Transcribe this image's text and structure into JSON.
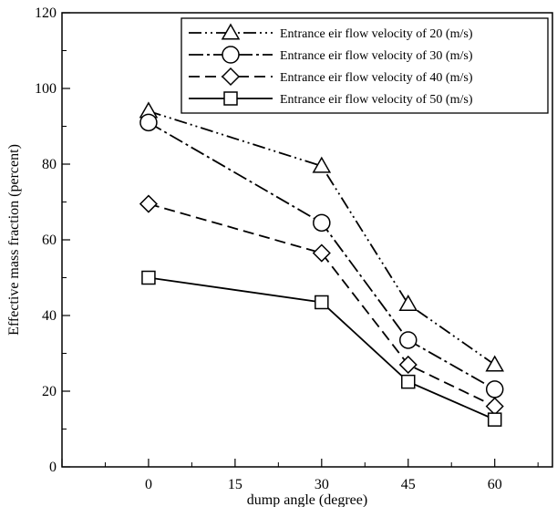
{
  "chart_data": {
    "type": "line",
    "title": "",
    "xlabel": "dump angle (degree)",
    "ylabel": "Effective mass fraction (percent)",
    "xlim": [
      -15,
      70
    ],
    "ylim": [
      0,
      120
    ],
    "x_ticks": [
      0,
      15,
      30,
      45,
      60
    ],
    "y_ticks": [
      0,
      20,
      40,
      60,
      80,
      100,
      120
    ],
    "x_tick_labels": [
      "0",
      "15",
      "30",
      "45",
      "60"
    ],
    "y_tick_labels": [
      "0",
      "20",
      "40",
      "60",
      "80",
      "100",
      "120"
    ],
    "grid": false,
    "legend_position": "top-right",
    "series": [
      {
        "name": "Entrance eir flow velocity of 20 (m/s)",
        "marker": "triangle",
        "dash": "dash-dot-dot",
        "x": [
          0,
          30,
          45,
          60
        ],
        "y": [
          94,
          79.5,
          43,
          27
        ]
      },
      {
        "name": "Entrance eir flow velocity of 30 (m/s)",
        "marker": "circle",
        "dash": "dash-dot",
        "x": [
          0,
          30,
          45,
          60
        ],
        "y": [
          91,
          64.5,
          33.5,
          20.5
        ]
      },
      {
        "name": "Entrance eir flow velocity of 40 (m/s)",
        "marker": "diamond",
        "dash": "dashed",
        "x": [
          0,
          30,
          45,
          60
        ],
        "y": [
          69.5,
          56.5,
          27,
          16
        ]
      },
      {
        "name": "Entrance eir flow velocity of 50 (m/s)",
        "marker": "square",
        "dash": "solid",
        "x": [
          0,
          30,
          45,
          60
        ],
        "y": [
          50,
          43.5,
          22.5,
          12.5
        ]
      }
    ]
  }
}
